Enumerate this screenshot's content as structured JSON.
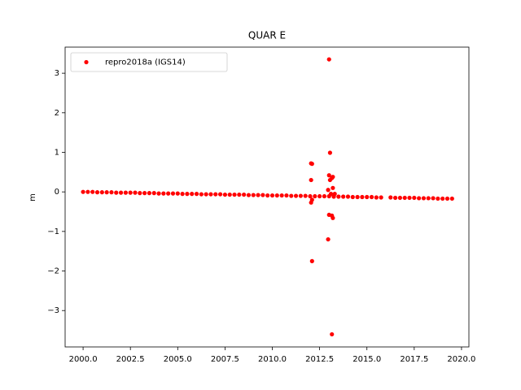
{
  "chart_data": {
    "type": "scatter",
    "title": "QUAR E",
    "y_label": "m",
    "xlim": [
      1999.05,
      2020.39
    ],
    "ylim": [
      -3.92,
      3.66
    ],
    "xticks": [
      {
        "value": 2000,
        "label": "2000.0"
      },
      2002.5,
      {
        "value": 2005,
        "label": "2005.0"
      },
      2007.5,
      {
        "value": 2010,
        "label": "2010.0"
      },
      2012.5,
      {
        "value": 2015,
        "label": "2015.0"
      },
      2017.5,
      {
        "value": 2020,
        "label": "2020.0"
      }
    ],
    "yticks": [
      {
        "value": -3,
        "label": "−3"
      },
      {
        "value": -2,
        "label": "−2"
      },
      {
        "value": -1,
        "label": "−1"
      },
      0,
      1,
      2,
      3
    ],
    "legend": "upper left",
    "series": [
      {
        "name": "repro2018a (IGS14)",
        "color": "#ff0000",
        "x": [
          2000,
          2000.25,
          2000.5,
          2000.75,
          2001,
          2001.25,
          2001.5,
          2001.75,
          2002,
          2002.25,
          2002.5,
          2002.75,
          2003,
          2003.25,
          2003.5,
          2003.75,
          2004,
          2004.25,
          2004.5,
          2004.75,
          2005,
          2005.25,
          2005.5,
          2005.75,
          2006,
          2006.25,
          2006.5,
          2006.75,
          2007,
          2007.25,
          2007.5,
          2007.75,
          2008,
          2008.25,
          2008.5,
          2008.75,
          2009,
          2009.25,
          2009.5,
          2009.75,
          2010,
          2010.25,
          2010.5,
          2010.75,
          2011,
          2011.25,
          2011.5,
          2011.75,
          2012,
          2012.25,
          2012.5,
          2012.75,
          2013,
          2013.25,
          2013.5,
          2013.75,
          2014,
          2014.25,
          2014.5,
          2014.75,
          2015,
          2015.25,
          2015.5,
          2015.75,
          2016.25,
          2016.5,
          2016.75,
          2017,
          2017.25,
          2017.5,
          2017.75,
          2018,
          2018.25,
          2018.5,
          2018.75,
          2019,
          2019.25,
          2019.5,
          2012.05,
          2012.1,
          2012.05,
          2012.1,
          2012.05,
          2012.1,
          2013.0,
          2013.05,
          2013.0,
          2013.05,
          2013.0,
          2012.95,
          2013.15,
          2013.2,
          2013.15,
          2013.2,
          2013.15,
          2013.2,
          2013.1,
          2013.3,
          2012.95
        ],
        "values": [
          0,
          0,
          0,
          -0.01,
          -0.01,
          -0.01,
          -0.01,
          -0.02,
          -0.02,
          -0.02,
          -0.02,
          -0.02,
          -0.03,
          -0.03,
          -0.03,
          -0.03,
          -0.04,
          -0.04,
          -0.04,
          -0.04,
          -0.04,
          -0.05,
          -0.05,
          -0.05,
          -0.05,
          -0.06,
          -0.06,
          -0.06,
          -0.06,
          -0.06,
          -0.07,
          -0.07,
          -0.07,
          -0.07,
          -0.07,
          -0.08,
          -0.08,
          -0.08,
          -0.08,
          -0.09,
          -0.09,
          -0.09,
          -0.09,
          -0.09,
          -0.1,
          -0.1,
          -0.1,
          -0.1,
          -0.11,
          -0.11,
          -0.11,
          -0.11,
          -0.11,
          -0.12,
          -0.12,
          -0.12,
          -0.12,
          -0.13,
          -0.13,
          -0.13,
          -0.13,
          -0.13,
          -0.14,
          -0.14,
          -0.14,
          -0.15,
          -0.15,
          -0.15,
          -0.15,
          -0.15,
          -0.16,
          -0.16,
          -0.16,
          -0.16,
          -0.17,
          -0.17,
          -0.17,
          -0.17,
          0.72,
          0.71,
          0.3,
          -0.2,
          -0.27,
          -1.75,
          3.35,
          0.99,
          0.42,
          0.3,
          -0.58,
          -1.2,
          0.35,
          0.38,
          -0.6,
          -0.66,
          -3.6,
          0.1,
          -0.05,
          -0.05,
          0.05
        ]
      }
    ]
  }
}
